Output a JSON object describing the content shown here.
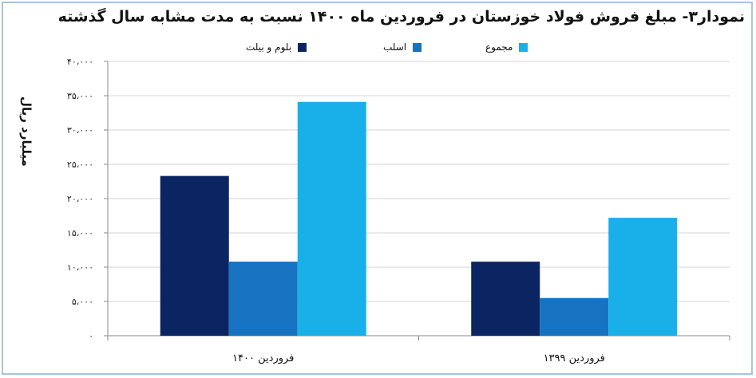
{
  "chart_data": {
    "type": "bar",
    "title": "نمودار۳- مبلغ فروش فولاد خوزستان در فروردین ماه ۱۴۰۰ نسبت به مدت مشابه سال گذشته",
    "ylabel": "میلیارد ریال",
    "xlabel": "",
    "categories": [
      "فروردین ۱۴۰۰",
      "فروردین ۱۳۹۹"
    ],
    "series": [
      {
        "name": "بلوم و بیلت",
        "color": "#0b2562",
        "values": [
          23300,
          10800
        ]
      },
      {
        "name": "اسلب",
        "color": "#1673c2",
        "values": [
          10800,
          5500
        ]
      },
      {
        "name": "مجموع",
        "color": "#19b0ea",
        "values": [
          34100,
          17200
        ]
      }
    ],
    "ylim": [
      0,
      40000
    ],
    "yticks": [
      0,
      5000,
      10000,
      15000,
      20000,
      25000,
      30000,
      35000,
      40000
    ],
    "ytick_labels": [
      "۰",
      "۵،۰۰۰",
      "۱۰،۰۰۰",
      "۱۵،۰۰۰",
      "۲۰،۰۰۰",
      "۲۵،۰۰۰",
      "۳۰،۰۰۰",
      "۳۵،۰۰۰",
      "۴۰،۰۰۰"
    ],
    "grid": true,
    "legend_position": "top"
  }
}
